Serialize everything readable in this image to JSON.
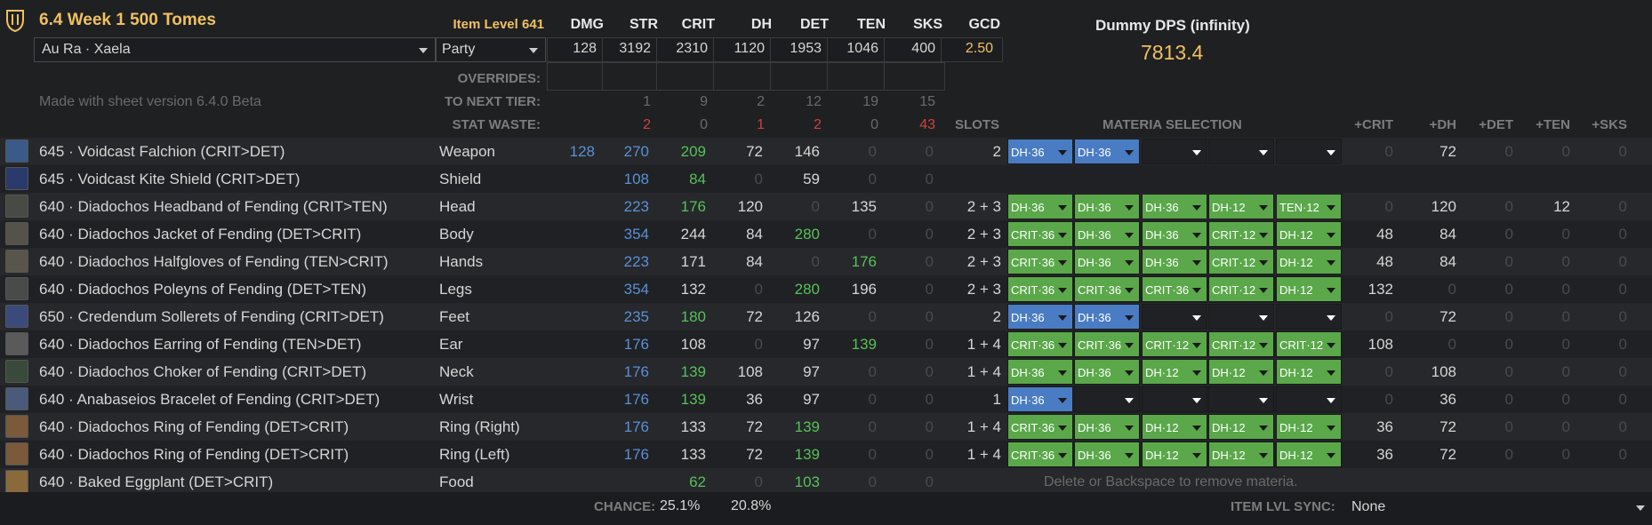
{
  "header": {
    "title": "6.4 Week 1 500 Tomes",
    "race": "Au Ra · Xaela",
    "party": "Party",
    "version_note": "Made with sheet version 6.4.0 Beta",
    "item_level": "Item Level 641",
    "dps_title": "Dummy DPS (infinity)",
    "dps_value": "7813.4"
  },
  "stat_columns": [
    "DMG",
    "STR",
    "CRIT",
    "DH",
    "DET",
    "TEN",
    "SKS",
    "GCD"
  ],
  "stat_totals": [
    "128",
    "3192",
    "2310",
    "1120",
    "1953",
    "1046",
    "400",
    "2.50"
  ],
  "row_labels": {
    "overrides": "OVERRIDES:",
    "next_tier": "TO NEXT TIER:",
    "waste": "STAT WASTE:"
  },
  "next_tier": [
    "1",
    "9",
    "2",
    "12",
    "19",
    "15"
  ],
  "stat_waste": [
    "2",
    "0",
    "1",
    "2",
    "0",
    "43"
  ],
  "slots_header": "SLOTS",
  "materia_header": "MATERIA SELECTION",
  "bonus_columns": [
    "+CRIT",
    "+DH",
    "+DET",
    "+TEN",
    "+SKS"
  ],
  "items": [
    {
      "name": "645 · Voidcast Falchion (CRIT>DET)",
      "slot": "Weapon",
      "dmg": "128",
      "str": "270",
      "crit": "209",
      "dh": "72",
      "det": "146",
      "ten": "0",
      "sks": "0",
      "slots": "2",
      "materia": [
        [
          "DH·36",
          "b"
        ],
        [
          "DH·36",
          "b"
        ],
        [
          "",
          "e"
        ],
        [
          "",
          "e"
        ],
        [
          "",
          "e"
        ]
      ],
      "bonus": [
        "0",
        "72",
        "0",
        "0",
        "0"
      ],
      "icon_color": "#3a5a8a"
    },
    {
      "name": "645 · Voidcast Kite Shield (CRIT>DET)",
      "slot": "Shield",
      "dmg": "",
      "str": "108",
      "crit": "84",
      "dh": "0",
      "det": "59",
      "ten": "0",
      "sks": "0",
      "slots": "",
      "materia": [],
      "bonus": [],
      "icon_color": "#2a3a6a"
    },
    {
      "name": "640 · Diadochos Headband of Fending (CRIT>TEN)",
      "slot": "Head",
      "dmg": "",
      "str": "223",
      "crit": "176",
      "dh": "120",
      "det": "0",
      "ten": "135",
      "sks": "0",
      "slots": "2 + 3",
      "materia": [
        [
          "DH·36",
          "g"
        ],
        [
          "DH·36",
          "g"
        ],
        [
          "DH·36",
          "g"
        ],
        [
          "DH·12",
          "g"
        ],
        [
          "TEN·12",
          "g"
        ]
      ],
      "bonus": [
        "0",
        "120",
        "0",
        "12",
        "0"
      ],
      "icon_color": "#4a4a44"
    },
    {
      "name": "640 · Diadochos Jacket of Fending (DET>CRIT)",
      "slot": "Body",
      "dmg": "",
      "str": "354",
      "crit": "244",
      "dh": "84",
      "det": "280",
      "ten": "0",
      "sks": "0",
      "slots": "2 + 3",
      "materia": [
        [
          "CRIT·36",
          "g"
        ],
        [
          "DH·36",
          "g"
        ],
        [
          "DH·36",
          "g"
        ],
        [
          "CRIT·12",
          "g"
        ],
        [
          "DH·12",
          "g"
        ]
      ],
      "bonus": [
        "48",
        "84",
        "0",
        "0",
        "0"
      ],
      "icon_color": "#55524a"
    },
    {
      "name": "640 · Diadochos Halfgloves of Fending (TEN>CRIT)",
      "slot": "Hands",
      "dmg": "",
      "str": "223",
      "crit": "171",
      "dh": "84",
      "det": "0",
      "ten": "176",
      "sks": "0",
      "slots": "2 + 3",
      "materia": [
        [
          "CRIT·36",
          "g"
        ],
        [
          "DH·36",
          "g"
        ],
        [
          "DH·36",
          "g"
        ],
        [
          "CRIT·12",
          "g"
        ],
        [
          "DH·12",
          "g"
        ]
      ],
      "bonus": [
        "48",
        "84",
        "0",
        "0",
        "0"
      ],
      "icon_color": "#5a554a"
    },
    {
      "name": "640 · Diadochos Poleyns of Fending (DET>TEN)",
      "slot": "Legs",
      "dmg": "",
      "str": "354",
      "crit": "132",
      "dh": "0",
      "det": "280",
      "ten": "196",
      "sks": "0",
      "slots": "2 + 3",
      "materia": [
        [
          "CRIT·36",
          "g"
        ],
        [
          "CRIT·36",
          "g"
        ],
        [
          "CRIT·36",
          "g"
        ],
        [
          "CRIT·12",
          "g"
        ],
        [
          "DH·12",
          "g"
        ]
      ],
      "bonus": [
        "132",
        "0",
        "0",
        "0",
        "0"
      ],
      "icon_color": "#4a4a4a"
    },
    {
      "name": "650 · Credendum Sollerets of Fending (CRIT>DET)",
      "slot": "Feet",
      "dmg": "",
      "str": "235",
      "crit": "180",
      "dh": "72",
      "det": "126",
      "ten": "0",
      "sks": "0",
      "slots": "2",
      "materia": [
        [
          "DH·36",
          "b"
        ],
        [
          "DH·36",
          "b"
        ],
        [
          "",
          "e"
        ],
        [
          "",
          "e"
        ],
        [
          "",
          "e"
        ]
      ],
      "bonus": [
        "0",
        "72",
        "0",
        "0",
        "0"
      ],
      "icon_color": "#3a4a7a"
    },
    {
      "name": "640 · Diadochos Earring of Fending (TEN>DET)",
      "slot": "Ear",
      "dmg": "",
      "str": "176",
      "crit": "108",
      "dh": "0",
      "det": "97",
      "ten": "139",
      "sks": "0",
      "slots": "1 + 4",
      "materia": [
        [
          "CRIT·36",
          "g"
        ],
        [
          "CRIT·36",
          "g"
        ],
        [
          "CRIT·12",
          "g"
        ],
        [
          "CRIT·12",
          "g"
        ],
        [
          "CRIT·12",
          "g"
        ]
      ],
      "bonus": [
        "108",
        "0",
        "0",
        "0",
        "0"
      ],
      "icon_color": "#5a5a5a"
    },
    {
      "name": "640 · Diadochos Choker of Fending (CRIT>DET)",
      "slot": "Neck",
      "dmg": "",
      "str": "176",
      "crit": "139",
      "dh": "108",
      "det": "97",
      "ten": "0",
      "sks": "0",
      "slots": "1 + 4",
      "materia": [
        [
          "DH·36",
          "g"
        ],
        [
          "DH·36",
          "g"
        ],
        [
          "DH·12",
          "g"
        ],
        [
          "DH·12",
          "g"
        ],
        [
          "DH·12",
          "g"
        ]
      ],
      "bonus": [
        "0",
        "108",
        "0",
        "0",
        "0"
      ],
      "icon_color": "#3a4a3a"
    },
    {
      "name": "640 · Anabaseios Bracelet of Fending (CRIT>DET)",
      "slot": "Wrist",
      "dmg": "",
      "str": "176",
      "crit": "139",
      "dh": "36",
      "det": "97",
      "ten": "0",
      "sks": "0",
      "slots": "1",
      "materia": [
        [
          "DH·36",
          "b"
        ],
        [
          "",
          "e"
        ],
        [
          "",
          "e"
        ],
        [
          "",
          "e"
        ],
        [
          "",
          "e"
        ]
      ],
      "bonus": [
        "0",
        "36",
        "0",
        "0",
        "0"
      ],
      "icon_color": "#4a5a7a"
    },
    {
      "name": "640 · Diadochos Ring of Fending (DET>CRIT)",
      "slot": "Ring (Right)",
      "dmg": "",
      "str": "176",
      "crit": "133",
      "dh": "72",
      "det": "139",
      "ten": "0",
      "sks": "0",
      "slots": "1 + 4",
      "materia": [
        [
          "CRIT·36",
          "g"
        ],
        [
          "DH·36",
          "g"
        ],
        [
          "DH·12",
          "g"
        ],
        [
          "DH·12",
          "g"
        ],
        [
          "DH·12",
          "g"
        ]
      ],
      "bonus": [
        "36",
        "72",
        "0",
        "0",
        "0"
      ],
      "icon_color": "#7a5a3a"
    },
    {
      "name": "640 · Diadochos Ring of Fending (DET>CRIT)",
      "slot": "Ring (Left)",
      "dmg": "",
      "str": "176",
      "crit": "133",
      "dh": "72",
      "det": "139",
      "ten": "0",
      "sks": "0",
      "slots": "1 + 4",
      "materia": [
        [
          "CRIT·36",
          "g"
        ],
        [
          "DH·36",
          "g"
        ],
        [
          "DH·12",
          "g"
        ],
        [
          "DH·12",
          "g"
        ],
        [
          "DH·12",
          "g"
        ]
      ],
      "bonus": [
        "36",
        "72",
        "0",
        "0",
        "0"
      ],
      "icon_color": "#7a5a3a"
    },
    {
      "name": "640 · Baked Eggplant (DET>CRIT)",
      "slot": "Food",
      "dmg": "",
      "str": "",
      "crit": "62",
      "dh": "0",
      "det": "103",
      "ten": "0",
      "sks": "0",
      "slots": "",
      "materia": [],
      "bonus": [],
      "icon_color": "#8a6a3a"
    }
  ],
  "food_note": "Delete or Backspace to remove materia.",
  "footer": {
    "chance_label": "CHANCE:",
    "chance_crit": "25.1%",
    "chance_dh": "20.8%",
    "sync_label": "ITEM LVL SYNC:",
    "sync_value": "None"
  },
  "colors": {
    "accent": "#f0c060",
    "blue": "#5b8fd6",
    "green": "#58c058",
    "red": "#d04040",
    "materia_green": "#5aa84a",
    "materia_blue": "#4a7cc4"
  }
}
